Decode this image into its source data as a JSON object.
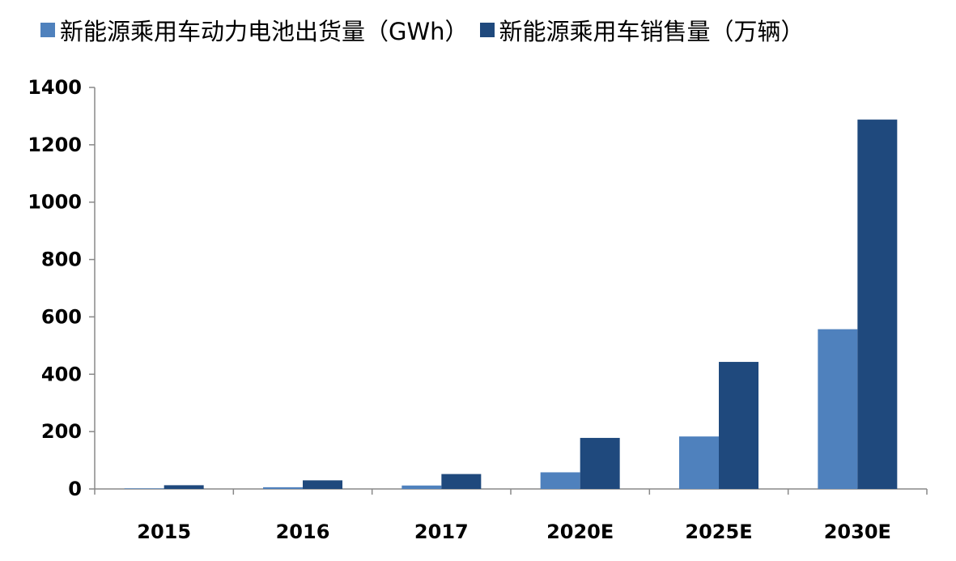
{
  "chart_data": {
    "type": "bar",
    "categories": [
      "2015",
      "2016",
      "2017",
      "2020E",
      "2025E",
      "2030E"
    ],
    "series": [
      {
        "name": "新能源乘用车动力电池出货量（GWh）",
        "color": "#4f81bd",
        "values": [
          2,
          6,
          12,
          58,
          183,
          557
        ]
      },
      {
        "name": "新能源乘用车销售量（万辆）",
        "color": "#1f497d",
        "values": [
          13,
          30,
          52,
          178,
          443,
          1288
        ]
      }
    ],
    "ylim": [
      0,
      1400
    ],
    "yticks": [
      0,
      200,
      400,
      600,
      800,
      1000,
      1200,
      1400
    ],
    "grid": false,
    "legend_position": "top",
    "title": "",
    "xlabel": "",
    "ylabel": ""
  }
}
